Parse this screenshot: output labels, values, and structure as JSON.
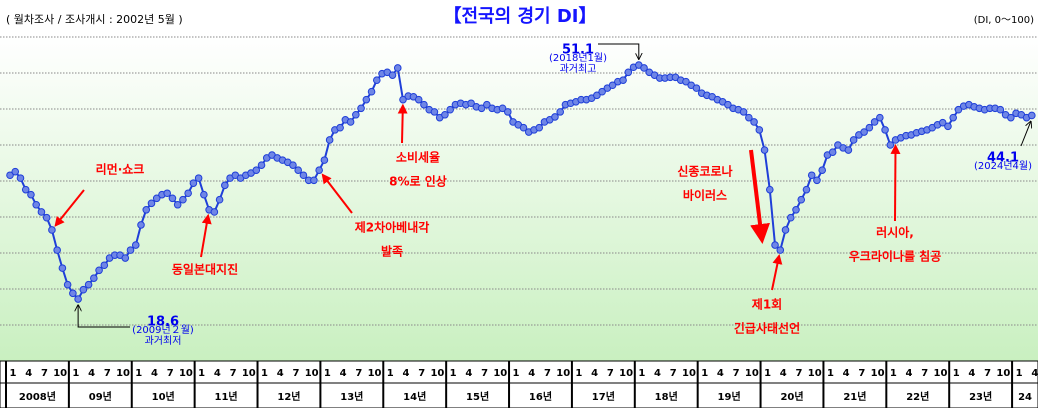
{
  "chart_data": {
    "type": "line",
    "title": "【전국의 경기 DI】",
    "subtitle": "( 월차조사 / 조사개시 : 2002년 5월 )",
    "unit_note": "(DI, 0～100)",
    "x": [
      "2008-01",
      "2008-02",
      "2008-03",
      "2008-04",
      "2008-05",
      "2008-06",
      "2008-07",
      "2008-08",
      "2008-09",
      "2008-10",
      "2008-11",
      "2008-12",
      "2009-01",
      "2009-02",
      "2009-03",
      "2009-04",
      "2009-05",
      "2009-06",
      "2009-07",
      "2009-08",
      "2009-09",
      "2009-10",
      "2009-11",
      "2009-12",
      "2010-01",
      "2010-02",
      "2010-03",
      "2010-04",
      "2010-05",
      "2010-06",
      "2010-07",
      "2010-08",
      "2010-09",
      "2010-10",
      "2010-11",
      "2010-12",
      "2011-01",
      "2011-02",
      "2011-03",
      "2011-04",
      "2011-05",
      "2011-06",
      "2011-07",
      "2011-08",
      "2011-09",
      "2011-10",
      "2011-11",
      "2011-12",
      "2012-01",
      "2012-02",
      "2012-03",
      "2012-04",
      "2012-05",
      "2012-06",
      "2012-07",
      "2012-08",
      "2012-09",
      "2012-10",
      "2012-11",
      "2012-12",
      "2013-01",
      "2013-02",
      "2013-03",
      "2013-04",
      "2013-05",
      "2013-06",
      "2013-07",
      "2013-08",
      "2013-09",
      "2013-10",
      "2013-11",
      "2013-12",
      "2014-01",
      "2014-02",
      "2014-03",
      "2014-04",
      "2014-05",
      "2014-06",
      "2014-07",
      "2014-08",
      "2014-09",
      "2014-10",
      "2014-11",
      "2014-12",
      "2015-01",
      "2015-02",
      "2015-03",
      "2015-04",
      "2015-05",
      "2015-06",
      "2015-07",
      "2015-08",
      "2015-09",
      "2015-10",
      "2015-11",
      "2015-12",
      "2016-01",
      "2016-02",
      "2016-03",
      "2016-04",
      "2016-05",
      "2016-06",
      "2016-07",
      "2016-08",
      "2016-09",
      "2016-10",
      "2016-11",
      "2016-12",
      "2017-01",
      "2017-02",
      "2017-03",
      "2017-04",
      "2017-05",
      "2017-06",
      "2017-07",
      "2017-08",
      "2017-09",
      "2017-10",
      "2017-11",
      "2017-12",
      "2018-01",
      "2018-02",
      "2018-03",
      "2018-04",
      "2018-05",
      "2018-06",
      "2018-07",
      "2018-08",
      "2018-09",
      "2018-10",
      "2018-11",
      "2018-12",
      "2019-01",
      "2019-02",
      "2019-03",
      "2019-04",
      "2019-05",
      "2019-06",
      "2019-07",
      "2019-08",
      "2019-09",
      "2019-10",
      "2019-11",
      "2019-12",
      "2020-01",
      "2020-02",
      "2020-03",
      "2020-04",
      "2020-05",
      "2020-06",
      "2020-07",
      "2020-08",
      "2020-09",
      "2020-10",
      "2020-11",
      "2020-12",
      "2021-01",
      "2021-02",
      "2021-03",
      "2021-04",
      "2021-05",
      "2021-06",
      "2021-07",
      "2021-08",
      "2021-09",
      "2021-10",
      "2021-11",
      "2021-12",
      "2022-01",
      "2022-02",
      "2022-03",
      "2022-04",
      "2022-05",
      "2022-06",
      "2022-07",
      "2022-08",
      "2022-09",
      "2022-10",
      "2022-11",
      "2022-12",
      "2023-01",
      "2023-02",
      "2023-03",
      "2023-04",
      "2023-05",
      "2023-06",
      "2023-07",
      "2023-08",
      "2023-09",
      "2023-10",
      "2023-11",
      "2023-12",
      "2024-01",
      "2024-02",
      "2024-03",
      "2024-04"
    ],
    "series": [
      {
        "color": "#1f3fd8",
        "marker_color": "#6f86e6",
        "values": [
          35.8,
          36.3,
          35.4,
          33.8,
          33.1,
          31.7,
          30.7,
          29.9,
          28.2,
          25.4,
          22.9,
          20.6,
          19.4,
          18.6,
          19.9,
          20.6,
          21.5,
          22.6,
          23.3,
          24.3,
          24.7,
          24.7,
          24.3,
          25.4,
          26.1,
          28.9,
          31.0,
          31.9,
          32.6,
          33.1,
          33.3,
          32.6,
          31.7,
          32.4,
          33.3,
          34.7,
          35.4,
          33.1,
          31.0,
          30.7,
          32.4,
          34.4,
          35.4,
          35.8,
          35.4,
          35.8,
          36.1,
          36.5,
          37.2,
          38.2,
          38.6,
          38.2,
          37.9,
          37.6,
          37.2,
          36.5,
          35.8,
          35.1,
          35.1,
          36.5,
          37.9,
          40.7,
          42.1,
          42.4,
          43.5,
          43.2,
          44.2,
          45.1,
          46.3,
          47.4,
          49.0,
          49.9,
          50.1,
          49.7,
          50.7,
          46.3,
          46.8,
          46.7,
          46.3,
          45.6,
          44.9,
          44.6,
          43.8,
          44.2,
          44.9,
          45.6,
          45.8,
          45.6,
          45.8,
          45.3,
          45.1,
          45.6,
          45.1,
          44.9,
          45.1,
          44.6,
          43.2,
          42.8,
          42.4,
          41.8,
          42.1,
          42.4,
          43.2,
          43.5,
          43.9,
          44.6,
          45.6,
          45.8,
          46.0,
          46.3,
          46.3,
          46.5,
          46.9,
          47.4,
          47.9,
          48.3,
          48.8,
          49.0,
          50.1,
          50.8,
          51.1,
          50.7,
          50.1,
          49.7,
          49.3,
          49.3,
          49.4,
          49.4,
          49.0,
          48.8,
          48.3,
          47.9,
          47.2,
          46.9,
          46.7,
          46.3,
          46.0,
          45.6,
          45.1,
          44.9,
          44.6,
          43.8,
          43.2,
          42.1,
          39.3,
          33.8,
          26.1,
          25.4,
          28.2,
          29.9,
          31.0,
          32.4,
          33.8,
          35.8,
          35.1,
          36.5,
          38.6,
          39.0,
          40.0,
          39.6,
          39.3,
          40.7,
          41.4,
          41.8,
          42.4,
          43.2,
          43.8,
          42.1,
          40.0,
          40.7,
          41.0,
          41.3,
          41.4,
          41.7,
          41.9,
          42.1,
          42.4,
          42.8,
          43.1,
          42.6,
          43.8,
          44.9,
          45.4,
          45.6,
          45.3,
          45.1,
          44.9,
          45.1,
          45.1,
          44.9,
          44.2,
          43.8,
          44.4,
          44.2,
          43.8,
          44.1
        ]
      }
    ],
    "ylim": [
      10,
      55
    ],
    "yticks": [
      15,
      20,
      25,
      30,
      35,
      40,
      45,
      50,
      55
    ],
    "grid": true,
    "xticks": [
      {
        "value": "2008-01",
        "label": "1"
      },
      {
        "value": "2008-04",
        "label": "4"
      },
      {
        "value": "2008-07",
        "label": "7"
      },
      {
        "value": "2008-10",
        "label": "10"
      },
      {
        "value": "2009-01",
        "label": "1"
      },
      {
        "value": "2009-04",
        "label": "4"
      },
      {
        "value": "2009-07",
        "label": "7"
      },
      {
        "value": "2009-10",
        "label": "10"
      },
      {
        "value": "2010-01",
        "label": "1"
      },
      {
        "value": "2010-04",
        "label": "4"
      },
      {
        "value": "2010-07",
        "label": "7"
      },
      {
        "value": "2010-10",
        "label": "10"
      },
      {
        "value": "2011-01",
        "label": "1"
      },
      {
        "value": "2011-04",
        "label": "4"
      },
      {
        "value": "2011-07",
        "label": "7"
      },
      {
        "value": "2011-10",
        "label": "10"
      },
      {
        "value": "2012-01",
        "label": "1"
      },
      {
        "value": "2012-04",
        "label": "4"
      },
      {
        "value": "2012-07",
        "label": "7"
      },
      {
        "value": "2012-10",
        "label": "10"
      },
      {
        "value": "2013-01",
        "label": "1"
      },
      {
        "value": "2013-04",
        "label": "4"
      },
      {
        "value": "2013-07",
        "label": "7"
      },
      {
        "value": "2013-10",
        "label": "10"
      },
      {
        "value": "2014-01",
        "label": "1"
      },
      {
        "value": "2014-04",
        "label": "4"
      },
      {
        "value": "2014-07",
        "label": "7"
      },
      {
        "value": "2014-10",
        "label": "10"
      },
      {
        "value": "2015-01",
        "label": "1"
      },
      {
        "value": "2015-04",
        "label": "4"
      },
      {
        "value": "2015-07",
        "label": "7"
      },
      {
        "value": "2015-10",
        "label": "10"
      },
      {
        "value": "2016-01",
        "label": "1"
      },
      {
        "value": "2016-04",
        "label": "4"
      },
      {
        "value": "2016-07",
        "label": "7"
      },
      {
        "value": "2016-10",
        "label": "10"
      },
      {
        "value": "2017-01",
        "label": "1"
      },
      {
        "value": "2017-04",
        "label": "4"
      },
      {
        "value": "2017-07",
        "label": "7"
      },
      {
        "value": "2017-10",
        "label": "10"
      },
      {
        "value": "2018-01",
        "label": "1"
      },
      {
        "value": "2018-04",
        "label": "4"
      },
      {
        "value": "2018-07",
        "label": "7"
      },
      {
        "value": "2018-10",
        "label": "10"
      },
      {
        "value": "2019-01",
        "label": "1"
      },
      {
        "value": "2019-04",
        "label": "4"
      },
      {
        "value": "2019-07",
        "label": "7"
      },
      {
        "value": "2019-10",
        "label": "10"
      },
      {
        "value": "2020-01",
        "label": "1"
      },
      {
        "value": "2020-04",
        "label": "4"
      },
      {
        "value": "2020-07",
        "label": "7"
      },
      {
        "value": "2020-10",
        "label": "10"
      },
      {
        "value": "2021-01",
        "label": "1"
      },
      {
        "value": "2021-04",
        "label": "4"
      },
      {
        "value": "2021-07",
        "label": "7"
      },
      {
        "value": "2021-10",
        "label": "10"
      },
      {
        "value": "2022-01",
        "label": "1"
      },
      {
        "value": "2022-04",
        "label": "4"
      },
      {
        "value": "2022-07",
        "label": "7"
      },
      {
        "value": "2022-10",
        "label": "10"
      },
      {
        "value": "2023-01",
        "label": "1"
      },
      {
        "value": "2023-04",
        "label": "4"
      },
      {
        "value": "2023-07",
        "label": "7"
      },
      {
        "value": "2023-10",
        "label": "10"
      },
      {
        "value": "2024-01",
        "label": "1"
      },
      {
        "value": "2024-04",
        "label": "4"
      }
    ],
    "year_labels": [
      {
        "value": "2008-01",
        "label": "2008년"
      },
      {
        "value": "2009-01",
        "label": "09년"
      },
      {
        "value": "2010-01",
        "label": "10년"
      },
      {
        "value": "2011-01",
        "label": "11년"
      },
      {
        "value": "2012-01",
        "label": "12년"
      },
      {
        "value": "2013-01",
        "label": "13년"
      },
      {
        "value": "2014-01",
        "label": "14년"
      },
      {
        "value": "2015-01",
        "label": "15년"
      },
      {
        "value": "2016-01",
        "label": "16년"
      },
      {
        "value": "2017-01",
        "label": "17년"
      },
      {
        "value": "2018-01",
        "label": "18년"
      },
      {
        "value": "2019-01",
        "label": "19년"
      },
      {
        "value": "2020-01",
        "label": "20년"
      },
      {
        "value": "2021-01",
        "label": "21년"
      },
      {
        "value": "2022-01",
        "label": "22년"
      },
      {
        "value": "2023-01",
        "label": "23년"
      },
      {
        "value": "2024-01",
        "label": "24"
      }
    ],
    "annotations": [
      {
        "x": "2008-09",
        "color": "#ff0000",
        "lines": [
          "리먼·쇼크"
        ]
      },
      {
        "x": "2011-03",
        "color": "#ff0000",
        "lines": [
          "동일본대지진"
        ]
      },
      {
        "x": "2012-12",
        "color": "#ff0000",
        "lines": [
          "제2차아베내각",
          "발족"
        ]
      },
      {
        "x": "2014-04",
        "color": "#ff0000",
        "lines": [
          "소비세율",
          "8%로 인상"
        ]
      },
      {
        "x": "2020-02",
        "color": "#ff0000",
        "lines": [
          "신종코로나",
          "바이러스"
        ]
      },
      {
        "x": "2020-04",
        "color": "#ff0000",
        "lines": [
          "제1회",
          "긴급사태선언"
        ]
      },
      {
        "x": "2022-02",
        "color": "#ff0000",
        "lines": [
          "러시아,",
          "우크라이나를 침공"
        ]
      },
      {
        "x": "2018-01",
        "color": "#0000ee",
        "lines": [
          "51.1",
          "(2018년1월)",
          "과거최고"
        ]
      },
      {
        "x": "2009-02",
        "color": "#0000ee",
        "lines": [
          "18.6",
          "(2009년２월)",
          "과거최저"
        ]
      },
      {
        "x": "2024-04",
        "color": "#0000ee",
        "lines": [
          "44.1",
          "(2024년4월)"
        ]
      }
    ]
  }
}
